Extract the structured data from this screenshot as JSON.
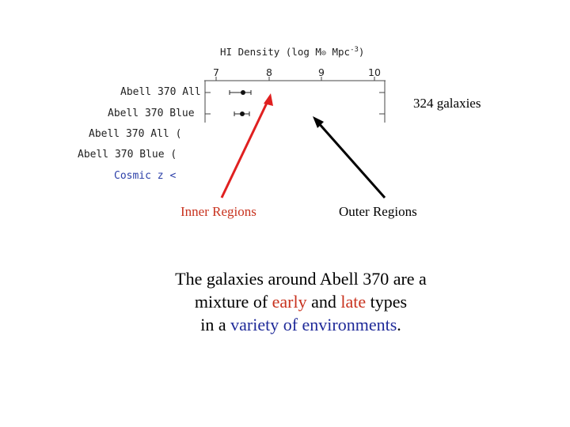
{
  "figure": {
    "axis_title_main": "HI Density (log M",
    "axis_title_sub": "⊙",
    "axis_title_tail": " Mpc",
    "axis_title_sup": "-3",
    "axis_title_close": ")",
    "ticks": [
      "7",
      "8",
      "9",
      "10"
    ],
    "rows": [
      "Abell 370 All",
      "Abell 370 Blue",
      "Abell 370 All (",
      "Abell 370 Blue (",
      "Cosmic z <"
    ],
    "colors": {
      "row_text": "#222222",
      "cosmic_row": "#2b3fa8"
    }
  },
  "annotations": {
    "galaxies_count": "324 galaxies",
    "inner_label": "Inner Regions",
    "outer_label": "Outer Regions",
    "arrow_colors": {
      "inner": "#e02020",
      "outer": "#000000"
    }
  },
  "caption": {
    "line1": "The galaxies around Abell 370 are a",
    "line2_pre": "mixture of ",
    "line2_early": "early",
    "line2_mid": " and ",
    "line2_late": "late",
    "line2_post": " types",
    "line3_pre": "in a ",
    "line3_variety": "variety of environments",
    "line3_post": ".",
    "colors": {
      "early": "#c8321e",
      "late": "#c8321e",
      "variety": "#1f2a99"
    }
  }
}
